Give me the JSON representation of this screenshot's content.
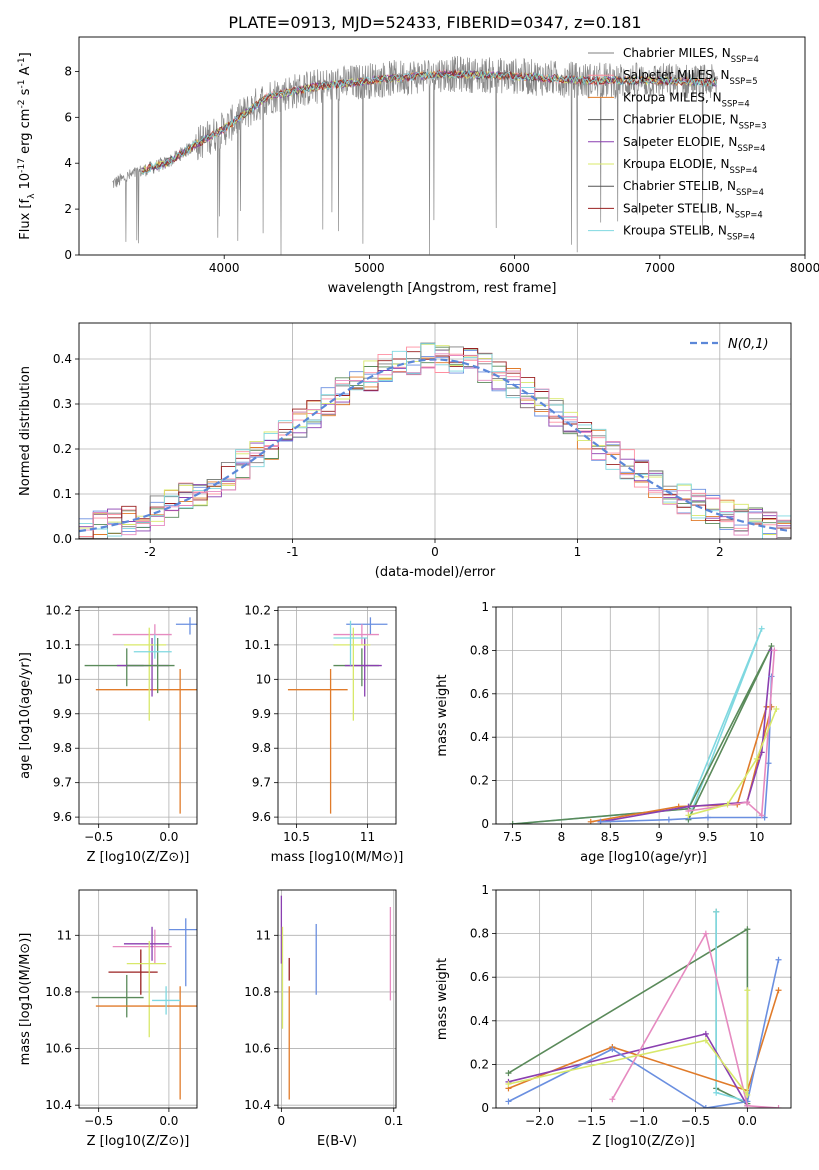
{
  "title": "PLATE=0913, MJD=52433, FIBERID=0347, z=0.181",
  "colors": [
    "#6a8fe0",
    "#e07b2a",
    "#5a8a5a",
    "#ff8fa0",
    "#8a3fb0",
    "#d8e86a",
    "#7f7f7f",
    "#9a2020",
    "#7fd8e0",
    "#e68ac0",
    "#a0a0a0"
  ],
  "chart_data": [
    {
      "id": "spectrum",
      "type": "line",
      "xlabel": "wavelength [Angstrom, rest frame]",
      "ylabel": "Flux [f_λ 10^-17 erg cm^-2 s^-1 A^-1]",
      "xlim": [
        3000,
        8000
      ],
      "ylim": [
        0,
        9.5
      ],
      "xticks": [
        4000,
        5000,
        6000,
        7000,
        8000
      ],
      "yticks": [
        0,
        2,
        4,
        6,
        8
      ],
      "legend_position": "top-right",
      "legend": [
        {
          "label": "Chabrier MILES, N_SSP=4",
          "color": "#7f7f7f"
        },
        {
          "label": "Salpeter MILES, N_SSP=5",
          "color": "#ff8fa0"
        },
        {
          "label": "Kroupa MILES, N_SSP=4",
          "color": "#e07b2a"
        },
        {
          "label": "Chabrier ELODIE, N_SSP=3",
          "color": "#5a5a5a"
        },
        {
          "label": "Salpeter ELODIE, N_SSP=4",
          "color": "#8a3fb0"
        },
        {
          "label": "Kroupa ELODIE, N_SSP=4",
          "color": "#d8e86a"
        },
        {
          "label": "Chabrier STELIB, N_SSP=4",
          "color": "#555555"
        },
        {
          "label": "Salpeter STELIB, N_SSP=4",
          "color": "#9a2020"
        },
        {
          "label": "Kroupa STELIB, N_SSP=4",
          "color": "#7fd8e0"
        }
      ],
      "envelope": {
        "x": [
          3230,
          3400,
          3600,
          3800,
          4000,
          4300,
          4600,
          5000,
          5500,
          6000,
          6500,
          7000,
          7400
        ],
        "y": [
          3.1,
          3.6,
          4.0,
          4.8,
          5.5,
          6.9,
          7.3,
          7.6,
          7.9,
          7.8,
          7.6,
          7.6,
          7.5
        ]
      }
    },
    {
      "id": "residuals",
      "type": "line",
      "xlabel": "(data-model)/error",
      "ylabel": "Normed distribution",
      "xlim": [
        -2.5,
        2.5
      ],
      "ylim": [
        0,
        0.48
      ],
      "xticks": [
        -2,
        -1,
        0,
        1,
        2
      ],
      "yticks": [
        0.0,
        0.1,
        0.2,
        0.3,
        0.4
      ],
      "legend_position": "top-right",
      "legend_label": "N(0,1)",
      "legend_color": "#5b87d8"
    },
    {
      "id": "age-vs-Z",
      "type": "scatter",
      "xlabel": "Z [log10(Z/Z⊙)]",
      "ylabel": "age [log10(age/yr)]",
      "xlim": [
        -0.64,
        0.2
      ],
      "ylim": [
        9.58,
        10.21
      ],
      "xticks": [
        -0.5,
        0.0
      ],
      "xticklabels": [
        "−0.5",
        "0.0"
      ],
      "yticks": [
        9.6,
        9.7,
        9.8,
        9.9,
        10.0,
        10.1,
        10.2
      ],
      "points": [
        {
          "x": -0.3,
          "y": 10.04,
          "xerr": 0.3,
          "yerr": [
            0.06,
            0.05
          ],
          "color": "#5a8a5a"
        },
        {
          "x": 0.15,
          "y": 10.16,
          "xerr": 0.1,
          "yerr": [
            0.03,
            0.02
          ],
          "color": "#6a8fe0"
        },
        {
          "x": 0.08,
          "y": 9.97,
          "xerr": 0.6,
          "yerr": [
            0.36,
            0.06
          ],
          "color": "#e07b2a"
        },
        {
          "x": -0.1,
          "y": 10.13,
          "xerr": 0.3,
          "yerr": [
            0.03,
            0.03
          ],
          "color": "#e68ac0"
        },
        {
          "x": -0.12,
          "y": 10.04,
          "xerr": 0.25,
          "yerr": [
            0.09,
            0.08
          ],
          "color": "#8a3fb0"
        },
        {
          "x": -0.14,
          "y": 10.1,
          "xerr": 0.18,
          "yerr": [
            0.22,
            0.05
          ],
          "color": "#d8e86a"
        },
        {
          "x": -0.08,
          "y": 10.04,
          "xerr": 0.22,
          "yerr": [
            0.08,
            0.08
          ],
          "color": "#5a8a5a"
        },
        {
          "x": -0.1,
          "y": 10.08,
          "xerr": 0.15,
          "yerr": [
            0.02,
            0.05
          ],
          "color": "#7fd8e0"
        }
      ]
    },
    {
      "id": "age-vs-mass",
      "type": "scatter",
      "xlabel": "mass [log10(M/M⊙)]",
      "ylabel": "",
      "xlim": [
        10.37,
        11.2
      ],
      "ylim": [
        9.58,
        10.21
      ],
      "xticks": [
        10.5,
        11.0
      ],
      "yticks": [
        9.6,
        9.7,
        9.8,
        9.9,
        10.0,
        10.1,
        10.2
      ],
      "points": [
        {
          "x": 10.74,
          "y": 9.97,
          "xerr": 0.3,
          "yerr": [
            0.36,
            0.06
          ],
          "color": "#e07b2a"
        },
        {
          "x": 11.02,
          "y": 10.16,
          "xerr": 0.17,
          "yerr": [
            0.03,
            0.02
          ],
          "color": "#6a8fe0"
        },
        {
          "x": 10.96,
          "y": 10.04,
          "xerr": 0.2,
          "yerr": [
            0.06,
            0.05
          ],
          "color": "#5a8a5a"
        },
        {
          "x": 10.96,
          "y": 10.13,
          "xerr": 0.2,
          "yerr": [
            0.03,
            0.03
          ],
          "color": "#e68ac0"
        },
        {
          "x": 10.98,
          "y": 10.04,
          "xerr": 0.14,
          "yerr": [
            0.09,
            0.08
          ],
          "color": "#8a3fb0"
        },
        {
          "x": 10.9,
          "y": 10.1,
          "xerr": 0.14,
          "yerr": [
            0.22,
            0.05
          ],
          "color": "#d8e86a"
        },
        {
          "x": 10.88,
          "y": 10.12,
          "xerr": 0.12,
          "yerr": [
            0.08,
            0.05
          ],
          "color": "#7fd8e0"
        }
      ]
    },
    {
      "id": "weight-vs-age",
      "type": "line",
      "xlabel": "age [log10(age/yr)]",
      "ylabel": "mass weight",
      "xlim": [
        7.33,
        10.35
      ],
      "ylim": [
        0,
        1.0
      ],
      "xticks": [
        7.5,
        8.0,
        8.5,
        9.0,
        9.5,
        10.0
      ],
      "yticks": [
        0.0,
        0.2,
        0.4,
        0.6,
        0.8,
        1.0
      ],
      "series": [
        {
          "color": "#7fd8e0",
          "x": [
            7.5,
            9.3,
            10.05,
            9.3
          ],
          "y": [
            0.0,
            0.07,
            0.9,
            0.02
          ]
        },
        {
          "color": "#5a8a5a",
          "x": [
            7.5,
            9.3,
            10.15,
            9.3
          ],
          "y": [
            0.0,
            0.07,
            0.82,
            0.02
          ]
        },
        {
          "color": "#e07b2a",
          "x": [
            8.3,
            9.2,
            9.8,
            10.1,
            10.15,
            9.9
          ],
          "y": [
            0.01,
            0.08,
            0.09,
            0.54,
            0.54,
            0.1
          ]
        },
        {
          "color": "#8a3fb0",
          "x": [
            8.4,
            9.3,
            9.9,
            10.05,
            10.15
          ],
          "y": [
            0.01,
            0.08,
            0.1,
            0.33,
            0.8
          ]
        },
        {
          "color": "#6a8fe0",
          "x": [
            8.4,
            9.1,
            9.5,
            10.08,
            10.12,
            10.15
          ],
          "y": [
            0.01,
            0.02,
            0.03,
            0.03,
            0.28,
            0.68
          ]
        },
        {
          "color": "#e68ac0",
          "x": [
            9.3,
            9.9,
            10.05,
            10.18
          ],
          "y": [
            0.06,
            0.1,
            0.04,
            0.8
          ]
        },
        {
          "color": "#d8e86a",
          "x": [
            9.3,
            9.7,
            10.0,
            10.2
          ],
          "y": [
            0.04,
            0.09,
            0.3,
            0.53
          ]
        }
      ]
    },
    {
      "id": "mass-vs-Z",
      "type": "scatter",
      "xlabel": "Z [log10(Z/Z⊙)]",
      "ylabel": "mass [log10(M/M⊙)]",
      "xlim": [
        -0.64,
        0.2
      ],
      "ylim": [
        10.39,
        11.16
      ],
      "xticks": [
        -0.5,
        0.0
      ],
      "xticklabels": [
        "−0.5",
        "0.0"
      ],
      "yticks": [
        10.4,
        10.6,
        10.8,
        11.0
      ],
      "points": [
        {
          "x": 0.12,
          "y": 11.02,
          "xerr": 0.12,
          "yerr": [
            0.2,
            0.04
          ],
          "color": "#6a8fe0"
        },
        {
          "x": -0.1,
          "y": 10.96,
          "xerr": 0.3,
          "yerr": [
            0.06,
            0.06
          ],
          "color": "#e68ac0"
        },
        {
          "x": -0.12,
          "y": 10.97,
          "xerr": 0.2,
          "yerr": [
            0.06,
            0.06
          ],
          "color": "#8a3fb0"
        },
        {
          "x": -0.3,
          "y": 10.78,
          "xerr": 0.25,
          "yerr": [
            0.07,
            0.08
          ],
          "color": "#5a8a5a"
        },
        {
          "x": -0.2,
          "y": 10.87,
          "xerr": 0.23,
          "yerr": [
            0.08,
            0.08
          ],
          "color": "#9a2020"
        },
        {
          "x": -0.14,
          "y": 10.9,
          "xerr": 0.16,
          "yerr": [
            0.26,
            0.08
          ],
          "color": "#d8e86a"
        },
        {
          "x": 0.08,
          "y": 10.75,
          "xerr": 0.6,
          "yerr": [
            0.33,
            0.07
          ],
          "color": "#e07b2a"
        },
        {
          "x": -0.02,
          "y": 10.77,
          "xerr": 0.1,
          "yerr": [
            0.05,
            0.05
          ],
          "color": "#7fd8e0"
        }
      ]
    },
    {
      "id": "mass-vs-EBV",
      "type": "scatter",
      "xlabel": "E(B-V)",
      "ylabel": "",
      "xlim": [
        -0.003,
        0.102
      ],
      "ylim": [
        10.39,
        11.16
      ],
      "xticks": [
        0.0,
        0.1
      ],
      "yticks": [
        10.4,
        10.6,
        10.8,
        11.0
      ],
      "points": [
        {
          "x": 0.0,
          "y": 11.0,
          "yerr": [
            0.1,
            0.14
          ],
          "color": "#8a3fb0"
        },
        {
          "x": 0.001,
          "y": 10.87,
          "yerr": [
            0.2,
            0.16
          ],
          "color": "#d8e86a"
        },
        {
          "x": 0.007,
          "y": 10.75,
          "yerr": [
            0.33,
            0.07
          ],
          "color": "#e07b2a"
        },
        {
          "x": 0.007,
          "y": 10.88,
          "yerr": [
            0.04,
            0.04
          ],
          "color": "#9a2020"
        },
        {
          "x": 0.031,
          "y": 10.92,
          "yerr": [
            0.13,
            0.12
          ],
          "color": "#6a8fe0"
        },
        {
          "x": 0.097,
          "y": 10.93,
          "yerr": [
            0.16,
            0.17
          ],
          "color": "#e68ac0"
        }
      ]
    },
    {
      "id": "weight-vs-Z",
      "type": "line",
      "xlabel": "Z [log10(Z/Z⊙)]",
      "ylabel": "mass weight",
      "xlim": [
        -2.42,
        0.42
      ],
      "ylim": [
        0,
        1.0
      ],
      "xticks": [
        -2.0,
        -1.5,
        -1.0,
        -0.5,
        0.0
      ],
      "xticklabels": [
        "−2.0",
        "−1.5",
        "−1.0",
        "−0.5",
        "0.0"
      ],
      "yticks": [
        0.0,
        0.2,
        0.4,
        0.6,
        0.8,
        1.0
      ],
      "series": [
        {
          "color": "#5a8a5a",
          "x": [
            -2.3,
            0.0,
            0.0,
            -0.3,
            -0.3
          ],
          "y": [
            0.16,
            0.82,
            0.02,
            0.09,
            0.9
          ]
        },
        {
          "color": "#7fd8e0",
          "x": [
            -0.3,
            -0.3,
            0.0
          ],
          "y": [
            0.9,
            0.07,
            0.03
          ]
        },
        {
          "color": "#e07b2a",
          "x": [
            -2.3,
            -1.3,
            0.0,
            0.3
          ],
          "y": [
            0.09,
            0.28,
            0.08,
            0.54
          ]
        },
        {
          "color": "#8a3fb0",
          "x": [
            -2.3,
            -0.4,
            0.0
          ],
          "y": [
            0.12,
            0.34,
            0.01
          ]
        },
        {
          "color": "#6a8fe0",
          "x": [
            -2.3,
            -1.3,
            -0.4,
            0.0,
            0.3
          ],
          "y": [
            0.03,
            0.27,
            0.0,
            0.03,
            0.68
          ]
        },
        {
          "color": "#e68ac0",
          "x": [
            -1.3,
            -0.4,
            0.0,
            0.3
          ],
          "y": [
            0.04,
            0.8,
            0.01,
            0.0
          ]
        },
        {
          "color": "#d8e86a",
          "x": [
            -2.3,
            -0.4,
            0.0,
            0.0
          ],
          "y": [
            0.11,
            0.31,
            0.06,
            0.54
          ]
        }
      ]
    }
  ]
}
